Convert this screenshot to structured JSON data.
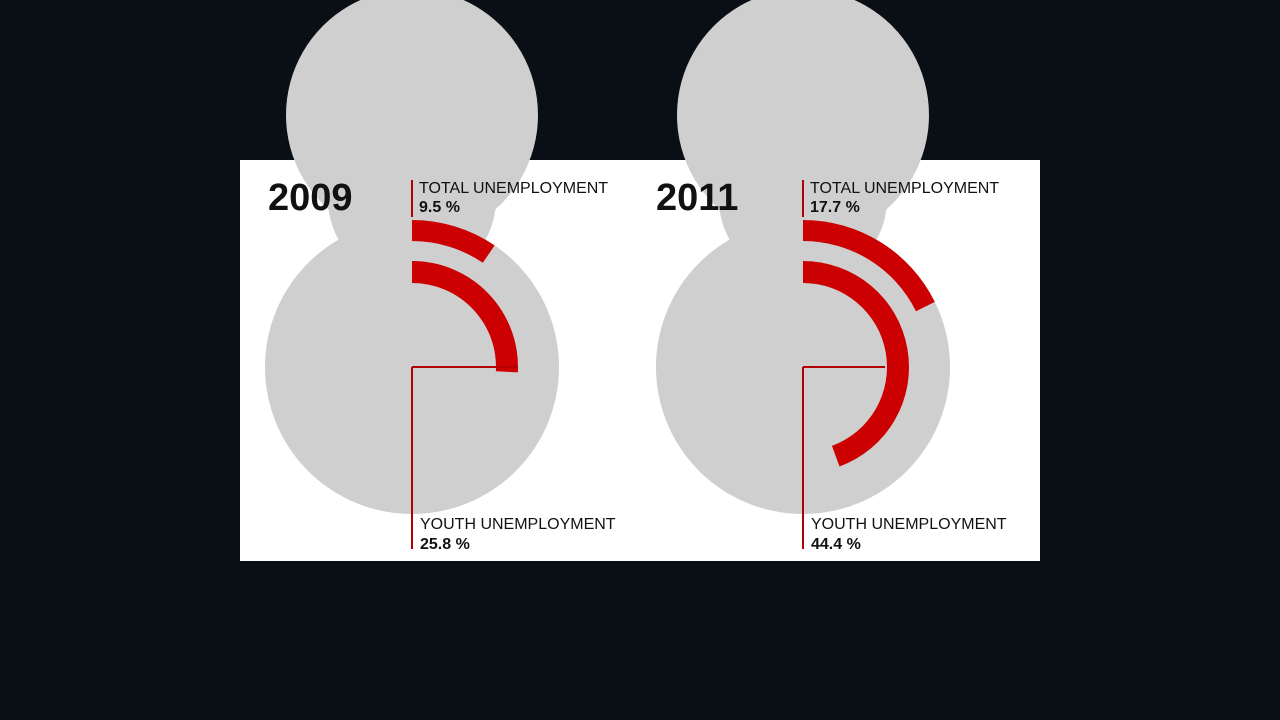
{
  "chart_data": {
    "type": "radial-bar",
    "colors": {
      "track": "#cfcfcf",
      "value": "#cc0000",
      "leader": "#b30000"
    },
    "charts": [
      {
        "year": "2009",
        "series": [
          {
            "name": "TOTAL UNEMPLOYMENT",
            "value": 9.5,
            "display": "9.5 %"
          },
          {
            "name": "YOUTH UNEMPLOYMENT",
            "value": 25.8,
            "display": "25.8 %"
          }
        ]
      },
      {
        "year": "2011",
        "series": [
          {
            "name": "TOTAL UNEMPLOYMENT",
            "value": 17.7,
            "display": "17.7 %"
          },
          {
            "name": "YOUTH UNEMPLOYMENT",
            "value": 44.4,
            "display": "44.4 %"
          }
        ]
      }
    ]
  }
}
